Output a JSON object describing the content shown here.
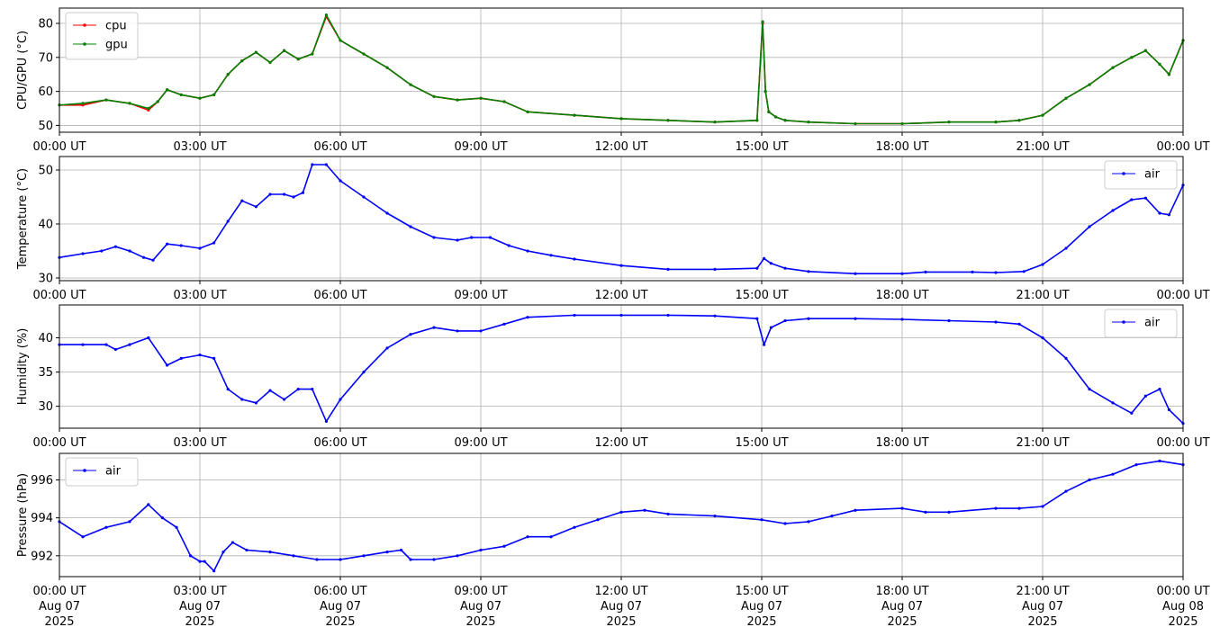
{
  "chart_data": [
    {
      "type": "line",
      "ylabel": "CPU/GPU (°C)",
      "ylim": [
        48,
        84.5
      ],
      "yticks": [
        50,
        60,
        70,
        80
      ],
      "grid": true,
      "legend_position": "top-left",
      "series": [
        {
          "name": "cpu",
          "color": "#ff0000",
          "x": [
            0,
            0.5,
            1,
            1.5,
            1.9,
            2.1,
            2.3,
            2.6,
            3,
            3.3,
            3.6,
            3.9,
            4.2,
            4.5,
            4.8,
            5.1,
            5.4,
            5.7,
            6,
            6.5,
            7,
            7.5,
            8,
            8.5,
            9,
            9.5,
            10,
            11,
            12,
            13,
            14,
            14.9,
            15.02,
            15.08,
            15.15,
            15.3,
            15.5,
            16,
            17,
            18,
            19,
            20,
            20.5,
            21,
            21.5,
            22,
            22.5,
            22.9,
            23.2,
            23.5,
            23.7,
            24
          ],
          "y": [
            56,
            56,
            57.5,
            56.5,
            54.5,
            57,
            60.5,
            59,
            58,
            59,
            65,
            69,
            71.5,
            68.5,
            72,
            69.5,
            71,
            82,
            75,
            71,
            67,
            62,
            58.5,
            57.5,
            58,
            57,
            54,
            53,
            52,
            51.5,
            51,
            51.5,
            80,
            60,
            54,
            52.5,
            51.5,
            51,
            50.5,
            50.5,
            51,
            51,
            51.5,
            53,
            58,
            62,
            67,
            70,
            72,
            68,
            65,
            75
          ]
        },
        {
          "name": "gpu",
          "color": "#008000",
          "x": [
            0,
            0.5,
            1,
            1.5,
            1.9,
            2.1,
            2.3,
            2.6,
            3,
            3.3,
            3.6,
            3.9,
            4.2,
            4.5,
            4.8,
            5.1,
            5.4,
            5.7,
            6,
            6.5,
            7,
            7.5,
            8,
            8.5,
            9,
            9.5,
            10,
            11,
            12,
            13,
            14,
            14.9,
            15.02,
            15.08,
            15.15,
            15.3,
            15.5,
            16,
            17,
            18,
            19,
            20,
            20.5,
            21,
            21.5,
            22,
            22.5,
            22.9,
            23.2,
            23.5,
            23.7,
            24
          ],
          "y": [
            56,
            56.5,
            57.5,
            56.5,
            55,
            57,
            60.5,
            59,
            58,
            59,
            65,
            69,
            71.5,
            68.5,
            72,
            69.5,
            71,
            82.5,
            75,
            71,
            67,
            62,
            58.5,
            57.5,
            58,
            57,
            54,
            53,
            52,
            51.5,
            51,
            51.5,
            80.5,
            60,
            54,
            52.5,
            51.5,
            51,
            50.5,
            50.5,
            51,
            51,
            51.5,
            53,
            58,
            62,
            67,
            70,
            72,
            68,
            65,
            75
          ]
        }
      ]
    },
    {
      "type": "line",
      "ylabel": "Temperature (°C)",
      "ylim": [
        29.5,
        52.5
      ],
      "yticks": [
        30,
        40,
        50
      ],
      "grid": true,
      "legend_position": "top-right",
      "series": [
        {
          "name": "air",
          "color": "#0000ff",
          "x": [
            0,
            0.5,
            0.9,
            1.2,
            1.5,
            1.8,
            2.0,
            2.3,
            2.6,
            3.0,
            3.3,
            3.6,
            3.9,
            4.2,
            4.5,
            4.8,
            5.0,
            5.2,
            5.4,
            5.7,
            6.0,
            6.5,
            7.0,
            7.5,
            8.0,
            8.5,
            8.8,
            9.2,
            9.6,
            10,
            10.5,
            11,
            12,
            13,
            14,
            14.9,
            15.05,
            15.2,
            15.5,
            16,
            17,
            18,
            18.5,
            19.5,
            20,
            20.6,
            21,
            21.5,
            22,
            22.5,
            22.9,
            23.2,
            23.5,
            23.7,
            24
          ],
          "y": [
            33.8,
            34.5,
            35,
            35.8,
            35,
            33.8,
            33.3,
            36.3,
            36,
            35.5,
            36.5,
            40.5,
            44.3,
            43.2,
            45.5,
            45.5,
            45,
            45.8,
            51,
            51,
            48,
            45,
            42,
            39.5,
            37.5,
            37,
            37.5,
            37.5,
            36,
            35,
            34.2,
            33.5,
            32.3,
            31.6,
            31.6,
            31.8,
            33.6,
            32.7,
            31.8,
            31.2,
            30.8,
            30.8,
            31.1,
            31.1,
            31.0,
            31.2,
            32.5,
            35.5,
            39.5,
            42.5,
            44.5,
            44.8,
            42,
            41.7,
            47.2
          ]
        }
      ]
    },
    {
      "type": "line",
      "ylabel": "Humidity (%)",
      "ylim": [
        26.8,
        44.8
      ],
      "yticks": [
        30,
        35,
        40
      ],
      "grid": true,
      "legend_position": "top-right",
      "series": [
        {
          "name": "air",
          "color": "#0000ff",
          "x": [
            0,
            0.5,
            1,
            1.2,
            1.5,
            1.9,
            2.3,
            2.6,
            3.0,
            3.3,
            3.6,
            3.9,
            4.2,
            4.5,
            4.8,
            5.1,
            5.4,
            5.7,
            6.0,
            6.5,
            7,
            7.5,
            8,
            8.5,
            9,
            9.5,
            10,
            11,
            12,
            13,
            14,
            14.9,
            15.05,
            15.2,
            15.5,
            16,
            17,
            18,
            19,
            20,
            20.5,
            21,
            21.5,
            22,
            22.5,
            22.9,
            23.2,
            23.5,
            23.7,
            24
          ],
          "y": [
            39,
            39,
            39,
            38.3,
            39,
            40,
            36,
            37,
            37.5,
            37,
            32.5,
            31,
            30.5,
            32.3,
            31,
            32.5,
            32.5,
            27.8,
            31,
            35,
            38.5,
            40.5,
            41.5,
            41,
            41,
            42,
            43,
            43.3,
            43.3,
            43.3,
            43.2,
            42.8,
            39,
            41.5,
            42.5,
            42.8,
            42.8,
            42.7,
            42.5,
            42.3,
            42,
            40,
            37,
            32.5,
            30.5,
            29,
            31.5,
            32.5,
            29.5,
            27.5
          ]
        }
      ]
    },
    {
      "type": "line",
      "ylabel": "Pressure (hPa)",
      "ylim": [
        990.9,
        997.4
      ],
      "yticks": [
        992,
        994,
        996
      ],
      "grid": true,
      "legend_position": "top-left",
      "series": [
        {
          "name": "air",
          "color": "#0000ff",
          "x": [
            0,
            0.5,
            1,
            1.5,
            1.9,
            2.2,
            2.5,
            2.8,
            3.0,
            3.1,
            3.3,
            3.5,
            3.7,
            4,
            4.5,
            5,
            5.5,
            6,
            6.5,
            7,
            7.3,
            7.5,
            8,
            8.5,
            9,
            9.5,
            10,
            10.5,
            11,
            11.5,
            12,
            12.5,
            13,
            14,
            15,
            15.5,
            16,
            16.5,
            17,
            18,
            18.5,
            19,
            20,
            20.5,
            21,
            21.5,
            22,
            22.5,
            23,
            23.5,
            24
          ],
          "y": [
            993.8,
            993,
            993.5,
            993.8,
            994.7,
            994,
            993.5,
            992,
            991.7,
            991.7,
            991.2,
            992.2,
            992.7,
            992.3,
            992.2,
            992,
            991.8,
            991.8,
            992,
            992.2,
            992.3,
            991.8,
            991.8,
            992.0,
            992.3,
            992.5,
            993.0,
            993.0,
            993.5,
            993.9,
            994.3,
            994.4,
            994.2,
            994.1,
            993.9,
            993.7,
            993.8,
            994.1,
            994.4,
            994.5,
            994.3,
            994.3,
            994.5,
            994.5,
            994.6,
            995.4,
            996,
            996.3,
            996.8,
            997,
            996.8
          ]
        }
      ]
    }
  ],
  "x_axis": {
    "range_hours": [
      0,
      24
    ],
    "tick_hours": [
      0,
      3,
      6,
      9,
      12,
      15,
      18,
      21,
      24
    ],
    "tick_labels": [
      "00:00 UT",
      "03:00 UT",
      "06:00 UT",
      "09:00 UT",
      "12:00 UT",
      "15:00 UT",
      "18:00 UT",
      "21:00 UT",
      "00:00 UT"
    ],
    "date_lines": [
      "Aug 07",
      "Aug 07",
      "Aug 07",
      "Aug 07",
      "Aug 07",
      "Aug 07",
      "Aug 07",
      "Aug 07",
      "Aug 08"
    ],
    "year_lines": [
      "2025",
      "2025",
      "2025",
      "2025",
      "2025",
      "2025",
      "2025",
      "2025",
      "2025"
    ]
  }
}
